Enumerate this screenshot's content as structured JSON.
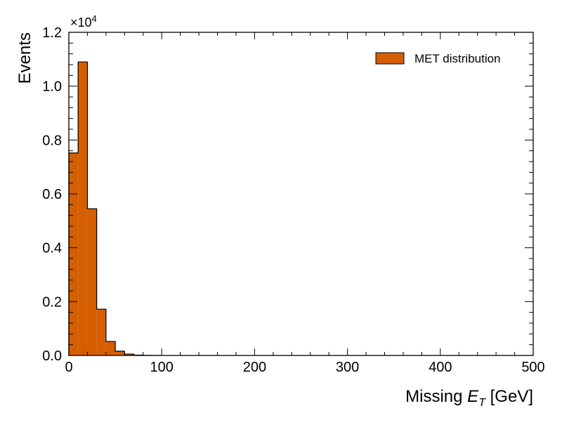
{
  "chart_data": {
    "type": "bar",
    "bin_width": 10,
    "bin_edges_start": [
      0,
      10,
      20,
      30,
      40,
      50,
      60,
      70,
      80,
      90
    ],
    "values": [
      7520,
      10900,
      5450,
      1720,
      520,
      160,
      50,
      15,
      5,
      2
    ],
    "xlim": [
      0,
      500
    ],
    "ylim": [
      0,
      12000
    ],
    "xlabel_main": "Missing ",
    "xlabel_var": "E",
    "xlabel_sub": "T",
    "xlabel_unit": " [GeV]",
    "ylabel": "Events",
    "x_ticks": [
      "0",
      "100",
      "200",
      "300",
      "400",
      "500"
    ],
    "y_ticks": [
      "0.0",
      "0.2",
      "0.4",
      "0.6",
      "0.8",
      "1.0",
      "1.2"
    ],
    "y_multiplier_base": "×10",
    "y_multiplier_exp": "4",
    "legend_label": "MET distribution",
    "legend_position": "top-right",
    "bar_color": "#d55e00",
    "edge_color": "#000000",
    "grid": false
  }
}
